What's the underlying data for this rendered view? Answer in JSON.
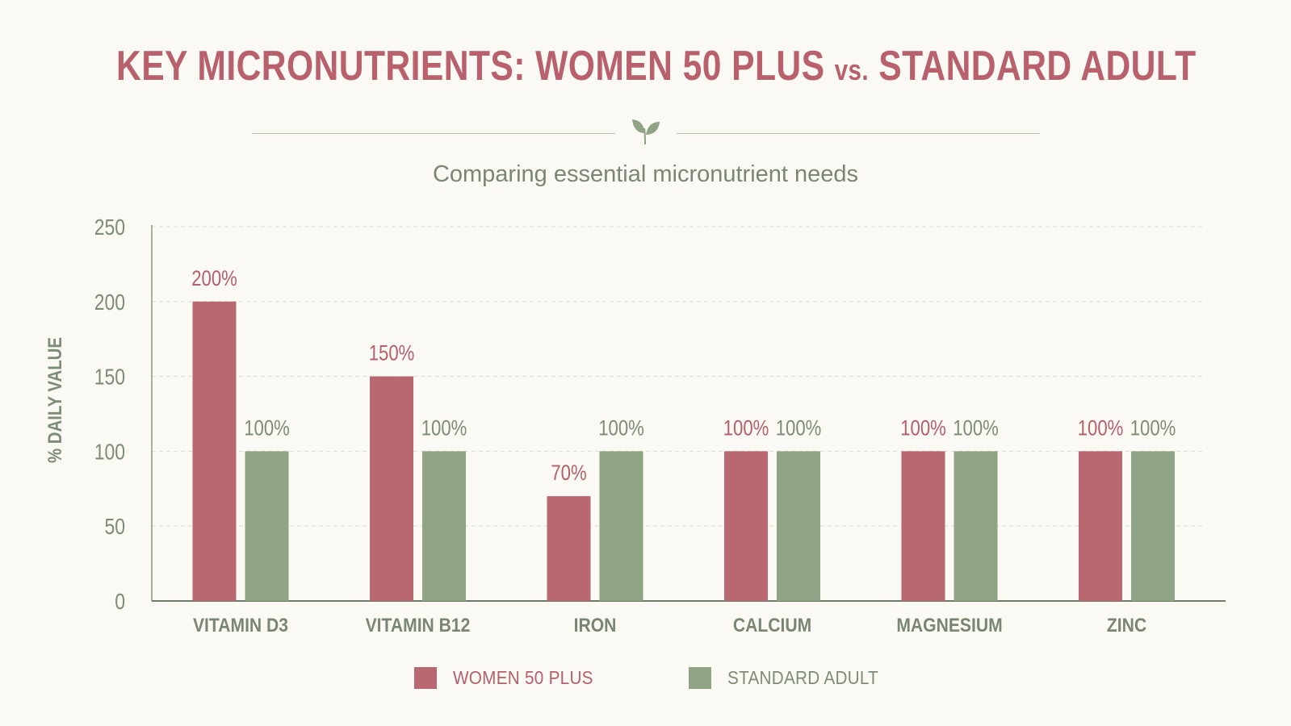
{
  "header": {
    "title_main": "KEY MICRONUTRIENTS: WOMEN 50 PLUS",
    "title_vs": "vs.",
    "title_end": "STANDARD ADULT",
    "divider_icon": "leaf-sprout-icon"
  },
  "subtitle": "Comparing essential micronutrient needs",
  "colors": {
    "women": "#b96872",
    "standard": "#8fa385",
    "title": "#b8616d",
    "axis_text": "#7d8c76",
    "grid": "#d9ddd4"
  },
  "chart_data": {
    "type": "bar",
    "ylabel": "% DAILY VALUE",
    "ylim": [
      0,
      250
    ],
    "yticks": [
      "0",
      "50",
      "100",
      "150",
      "200",
      "250"
    ],
    "grid": true,
    "legend_position": "bottom-center",
    "categories": [
      "VITAMIN D3",
      "VITAMIN B12",
      "IRON",
      "CALCIUM",
      "MAGNESIUM",
      "ZINC"
    ],
    "series": [
      {
        "name": "WOMEN 50 PLUS",
        "values": [
          200,
          150,
          70,
          100,
          100,
          100
        ],
        "labels": [
          "200%",
          "150%",
          "70%",
          "100%",
          "100%",
          "100%"
        ]
      },
      {
        "name": "STANDARD ADULT",
        "values": [
          100,
          100,
          100,
          100,
          100,
          100
        ],
        "labels": [
          "100%",
          "100%",
          "100%",
          "100%",
          "100%",
          "100%"
        ]
      }
    ]
  }
}
